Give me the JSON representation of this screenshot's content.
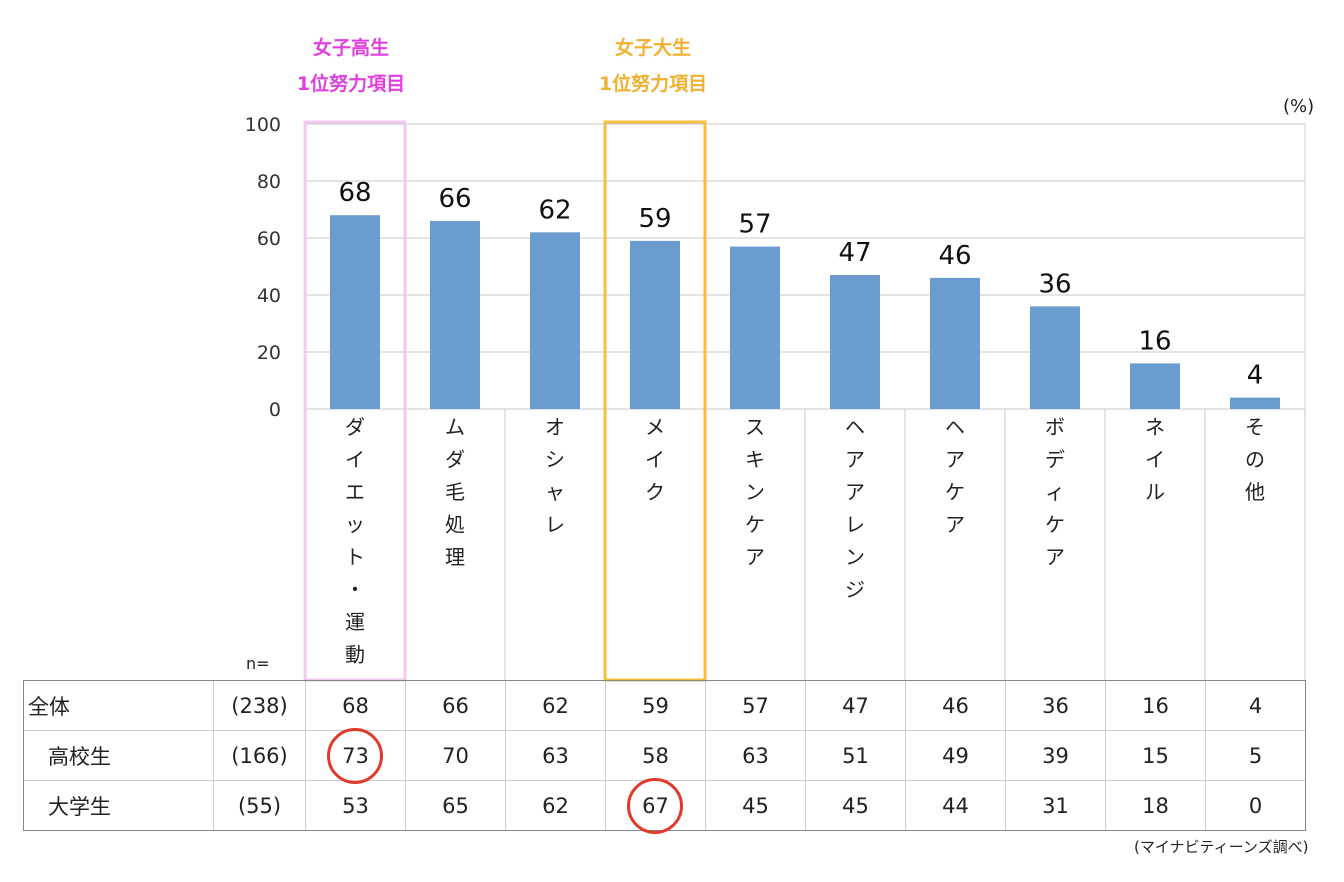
{
  "annotations": {
    "high_school": {
      "line1": "女子高生",
      "line2": "1位努力項目",
      "color": "#e040e0",
      "box_color": "#f2c8f2"
    },
    "university": {
      "line1": "女子大生",
      "line2": "1位努力項目",
      "color": "#f0b030",
      "box_color": "#f5bf40"
    }
  },
  "unit_label": "(%)",
  "n_label": "n=",
  "source": "(マイナビティーンズ調べ)",
  "chart_data": {
    "type": "bar",
    "categories": [
      "ダイエット・運動",
      "ムダ毛処理",
      "オシャレ",
      "メイク",
      "スキンケア",
      "ヘアアレンジ",
      "ヘアケア",
      "ボディケア",
      "ネイル",
      "その他"
    ],
    "values": [
      68,
      66,
      62,
      59,
      57,
      47,
      46,
      36,
      16,
      4
    ],
    "ylim": [
      0,
      100
    ],
    "yticks": [
      0,
      20,
      40,
      60,
      80,
      100
    ],
    "bar_color": "#6a9ccf",
    "grid": true,
    "data_labels": true
  },
  "table": {
    "rows": [
      {
        "label": "全体",
        "n": "(238)",
        "values": [
          "68",
          "66",
          "62",
          "59",
          "57",
          "47",
          "46",
          "36",
          "16",
          "4"
        ],
        "circled": []
      },
      {
        "label": "高校生",
        "n": "(166)",
        "values": [
          "73",
          "70",
          "63",
          "58",
          "63",
          "51",
          "49",
          "39",
          "15",
          "5"
        ],
        "circled": [
          0
        ]
      },
      {
        "label": "大学生",
        "n": "(55)",
        "values": [
          "53",
          "65",
          "62",
          "67",
          "45",
          "45",
          "44",
          "31",
          "18",
          "0"
        ],
        "circled": [
          3
        ]
      }
    ]
  }
}
